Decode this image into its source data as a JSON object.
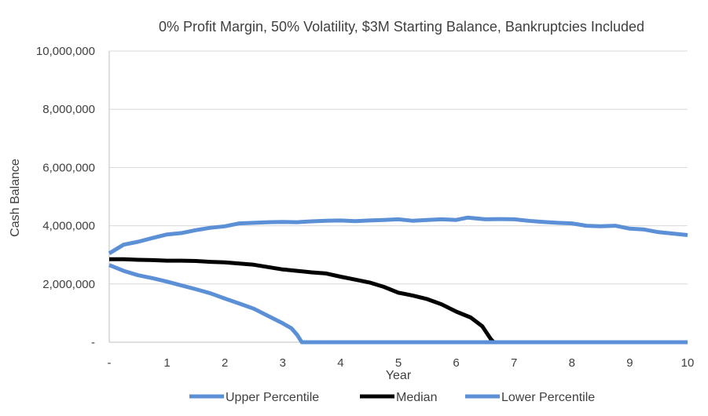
{
  "chart_data": {
    "type": "line",
    "title": "0% Profit Margin, 50% Volatility, $3M Starting Balance, Bankruptcies Included",
    "xlabel": "Year",
    "ylabel": "Cash Balance",
    "xlim": [
      0,
      10
    ],
    "ylim": [
      0,
      10000000
    ],
    "grid": "horizontal",
    "legend_position": "bottom",
    "x_tick_labels": [
      "-",
      "1",
      "2",
      "3",
      "4",
      "5",
      "6",
      "7",
      "8",
      "9",
      "10"
    ],
    "y_tick_labels": [
      "-",
      "2,000,000",
      "4,000,000",
      "6,000,000",
      "8,000,000",
      "10,000,000"
    ],
    "series": [
      {
        "name": "Upper Percentile",
        "color": "#5b8fd6",
        "x": [
          0,
          0.25,
          0.5,
          0.75,
          1,
          1.25,
          1.5,
          1.75,
          2,
          2.25,
          2.5,
          2.75,
          3,
          3.25,
          3.5,
          3.75,
          4,
          4.25,
          4.5,
          4.75,
          5,
          5.25,
          5.5,
          5.75,
          6,
          6.2,
          6.5,
          6.75,
          7,
          7.25,
          7.5,
          7.75,
          8,
          8.25,
          8.5,
          8.75,
          9,
          9.25,
          9.5,
          9.75,
          10
        ],
        "values": [
          3050000,
          3350000,
          3450000,
          3580000,
          3700000,
          3750000,
          3850000,
          3930000,
          3980000,
          4080000,
          4100000,
          4120000,
          4130000,
          4120000,
          4150000,
          4170000,
          4180000,
          4160000,
          4180000,
          4200000,
          4220000,
          4170000,
          4200000,
          4220000,
          4200000,
          4280000,
          4220000,
          4230000,
          4220000,
          4170000,
          4130000,
          4100000,
          4080000,
          4000000,
          3980000,
          4000000,
          3900000,
          3870000,
          3780000,
          3730000,
          3680000
        ]
      },
      {
        "name": "Median",
        "color": "#000000",
        "x": [
          0,
          0.25,
          0.5,
          0.75,
          1,
          1.25,
          1.5,
          1.75,
          2,
          2.25,
          2.5,
          2.75,
          3,
          3.25,
          3.5,
          3.75,
          4,
          4.25,
          4.5,
          4.75,
          5,
          5.25,
          5.5,
          5.75,
          6,
          6.25,
          6.45,
          6.6,
          6.65
        ],
        "values": [
          2850000,
          2850000,
          2830000,
          2820000,
          2800000,
          2800000,
          2790000,
          2760000,
          2740000,
          2700000,
          2660000,
          2580000,
          2500000,
          2450000,
          2400000,
          2360000,
          2250000,
          2150000,
          2050000,
          1900000,
          1700000,
          1600000,
          1480000,
          1300000,
          1050000,
          850000,
          550000,
          100000,
          0
        ]
      },
      {
        "name": "Lower Percentile",
        "color": "#5b8fd6",
        "x": [
          0,
          0.25,
          0.5,
          0.75,
          1,
          1.25,
          1.5,
          1.75,
          2,
          2.25,
          2.5,
          2.75,
          3,
          3.15,
          3.25,
          3.33,
          3.4,
          4,
          5,
          6,
          7,
          8,
          9,
          10
        ],
        "values": [
          2650000,
          2450000,
          2300000,
          2200000,
          2080000,
          1950000,
          1820000,
          1680000,
          1500000,
          1330000,
          1150000,
          900000,
          650000,
          480000,
          250000,
          0,
          0,
          0,
          0,
          0,
          0,
          0,
          0,
          0
        ]
      }
    ]
  }
}
